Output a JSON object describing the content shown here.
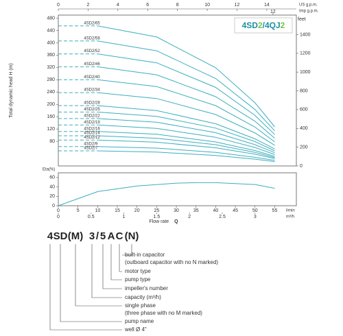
{
  "chart_data": [
    {
      "type": "line",
      "title_parts": [
        "4SD",
        "2",
        "/4QJ",
        "2"
      ],
      "title_colors": [
        "#1b8fa3",
        "#7cc243",
        "#1b8fa3",
        "#7cc243"
      ],
      "y_label": "Total dynamic head H (m)",
      "y2_label": "feet",
      "x2_label": "US g.p.m.",
      "x3_label": "Imp g.p.m.",
      "x": [
        0,
        10,
        25,
        40,
        50,
        55
      ],
      "xlim": [
        0,
        60.5
      ],
      "ylim": [
        0,
        490
      ],
      "yticks": [
        80,
        120,
        160,
        200,
        240,
        280,
        320,
        360,
        400,
        440,
        480
      ],
      "y2lim": [
        0,
        1607.6
      ],
      "y2ticks": [
        0,
        200,
        400,
        600,
        800,
        1000,
        1200,
        1400
      ],
      "x2ticks": [
        0,
        2,
        4,
        6,
        8,
        10,
        12,
        14
      ],
      "x3ticks": [
        12
      ],
      "color": "#3aaebf",
      "series": [
        {
          "name": "4SD2/65",
          "values": [
            455,
            455,
            419,
            319,
            205,
            127
          ]
        },
        {
          "name": "4SD2/58",
          "values": [
            406,
            406,
            374,
            284,
            183,
            114
          ]
        },
        {
          "name": "4SD2/52",
          "values": [
            364,
            364,
            335,
            255,
            164,
            102
          ]
        },
        {
          "name": "4SD2/46",
          "values": [
            322,
            322,
            296,
            225,
            145,
            90
          ]
        },
        {
          "name": "4SD2/40",
          "values": [
            280,
            280,
            258,
            196,
            126,
            78
          ]
        },
        {
          "name": "4SD2/34",
          "values": [
            238,
            238,
            219,
            167,
            107,
            67
          ]
        },
        {
          "name": "4SD2/28",
          "values": [
            196,
            196,
            180,
            137,
            88,
            55
          ]
        },
        {
          "name": "4SD2/25",
          "values": [
            175,
            175,
            161,
            123,
            79,
            49
          ]
        },
        {
          "name": "4SD2/22",
          "values": [
            154,
            154,
            142,
            108,
            69,
            43
          ]
        },
        {
          "name": "4SD2/19",
          "values": [
            133,
            133,
            122,
            93,
            60,
            37
          ]
        },
        {
          "name": "4SD2/16",
          "values": [
            112,
            112,
            103,
            78,
            50,
            31
          ]
        },
        {
          "name": "4SD2/14",
          "values": [
            98,
            98,
            90,
            69,
            44,
            27
          ]
        },
        {
          "name": "4SD2/12",
          "values": [
            84,
            84,
            77,
            59,
            38,
            24
          ]
        },
        {
          "name": "4SD2/9",
          "values": [
            63,
            63,
            58,
            44,
            28,
            18
          ]
        },
        {
          "name": "4SD2/7",
          "values": [
            49,
            49,
            45,
            34,
            22,
            14
          ]
        }
      ]
    },
    {
      "type": "line",
      "y_label": "Eta(%)",
      "x": [
        0,
        10,
        20,
        30,
        35,
        40,
        50,
        55
      ],
      "values": [
        0,
        30,
        42,
        48,
        49,
        49,
        45,
        37
      ],
      "color": "#3aaebf",
      "xlim": [
        0,
        60.5
      ],
      "ylim": [
        0,
        70
      ],
      "yticks": [
        0,
        20,
        40,
        60
      ],
      "xticks": [
        0,
        5,
        10,
        15,
        20,
        25,
        30,
        35,
        40,
        45,
        50,
        55
      ],
      "x_unit": "l/min",
      "x2ticks": [
        0,
        0.5,
        1,
        1.5,
        2,
        2.5,
        3
      ],
      "x2_unit": "m³/h",
      "x_label": "Flow rate",
      "x_symbol": "Q"
    }
  ],
  "model_code": {
    "parts": [
      "4",
      "SD",
      "(M)",
      "3",
      "/",
      "5",
      "A",
      "C",
      "(N)"
    ],
    "descriptions": [
      {
        "text": "built-in capacitor",
        "note": "(outboard capacitor with no N marked)"
      },
      {
        "text": "motor type"
      },
      {
        "text": "pump type"
      },
      {
        "text": "impeller's number"
      },
      {
        "text": "capacity (m³/h)"
      },
      {
        "text": "single phase",
        "note": "(three phase with no M marked)"
      },
      {
        "text": "pump name"
      },
      {
        "text": "well Ø 4\""
      }
    ]
  }
}
